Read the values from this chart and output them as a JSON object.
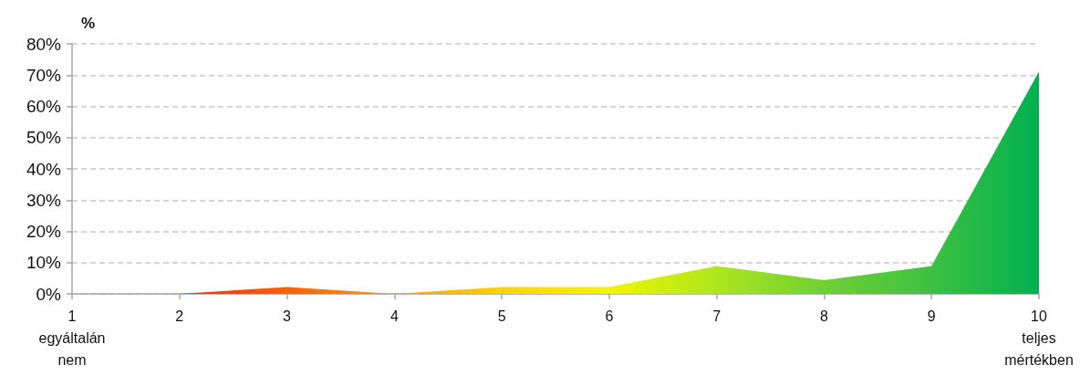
{
  "chart_data": {
    "type": "area",
    "ylabel": "%",
    "categories": [
      "1\negyáltalán\nnem",
      "2",
      "3",
      "4",
      "5",
      "6",
      "7",
      "8",
      "9",
      "10\nteljes\nmértékben"
    ],
    "values": [
      0,
      0,
      2.2,
      0,
      2.2,
      2.2,
      8.9,
      4.4,
      8.9,
      71.1
    ],
    "colors": [
      "#ff0000",
      "#ff2a00",
      "#ff6000",
      "#ffa000",
      "#ffd400",
      "#f2f500",
      "#ade61e",
      "#6fd034",
      "#3dc142",
      "#00b050"
    ],
    "ylim": [
      0,
      80
    ],
    "yticks": [
      {
        "value": 0,
        "label": "0%"
      },
      {
        "value": 10,
        "label": "10%"
      },
      {
        "value": 20,
        "label": "20%"
      },
      {
        "value": 30,
        "label": "30%"
      },
      {
        "value": 40,
        "label": "40%"
      },
      {
        "value": 50,
        "label": "50%"
      },
      {
        "value": 60,
        "label": "60%"
      },
      {
        "value": 70,
        "label": "70%"
      },
      {
        "value": 80,
        "label": "80%"
      }
    ],
    "grid": "y"
  }
}
